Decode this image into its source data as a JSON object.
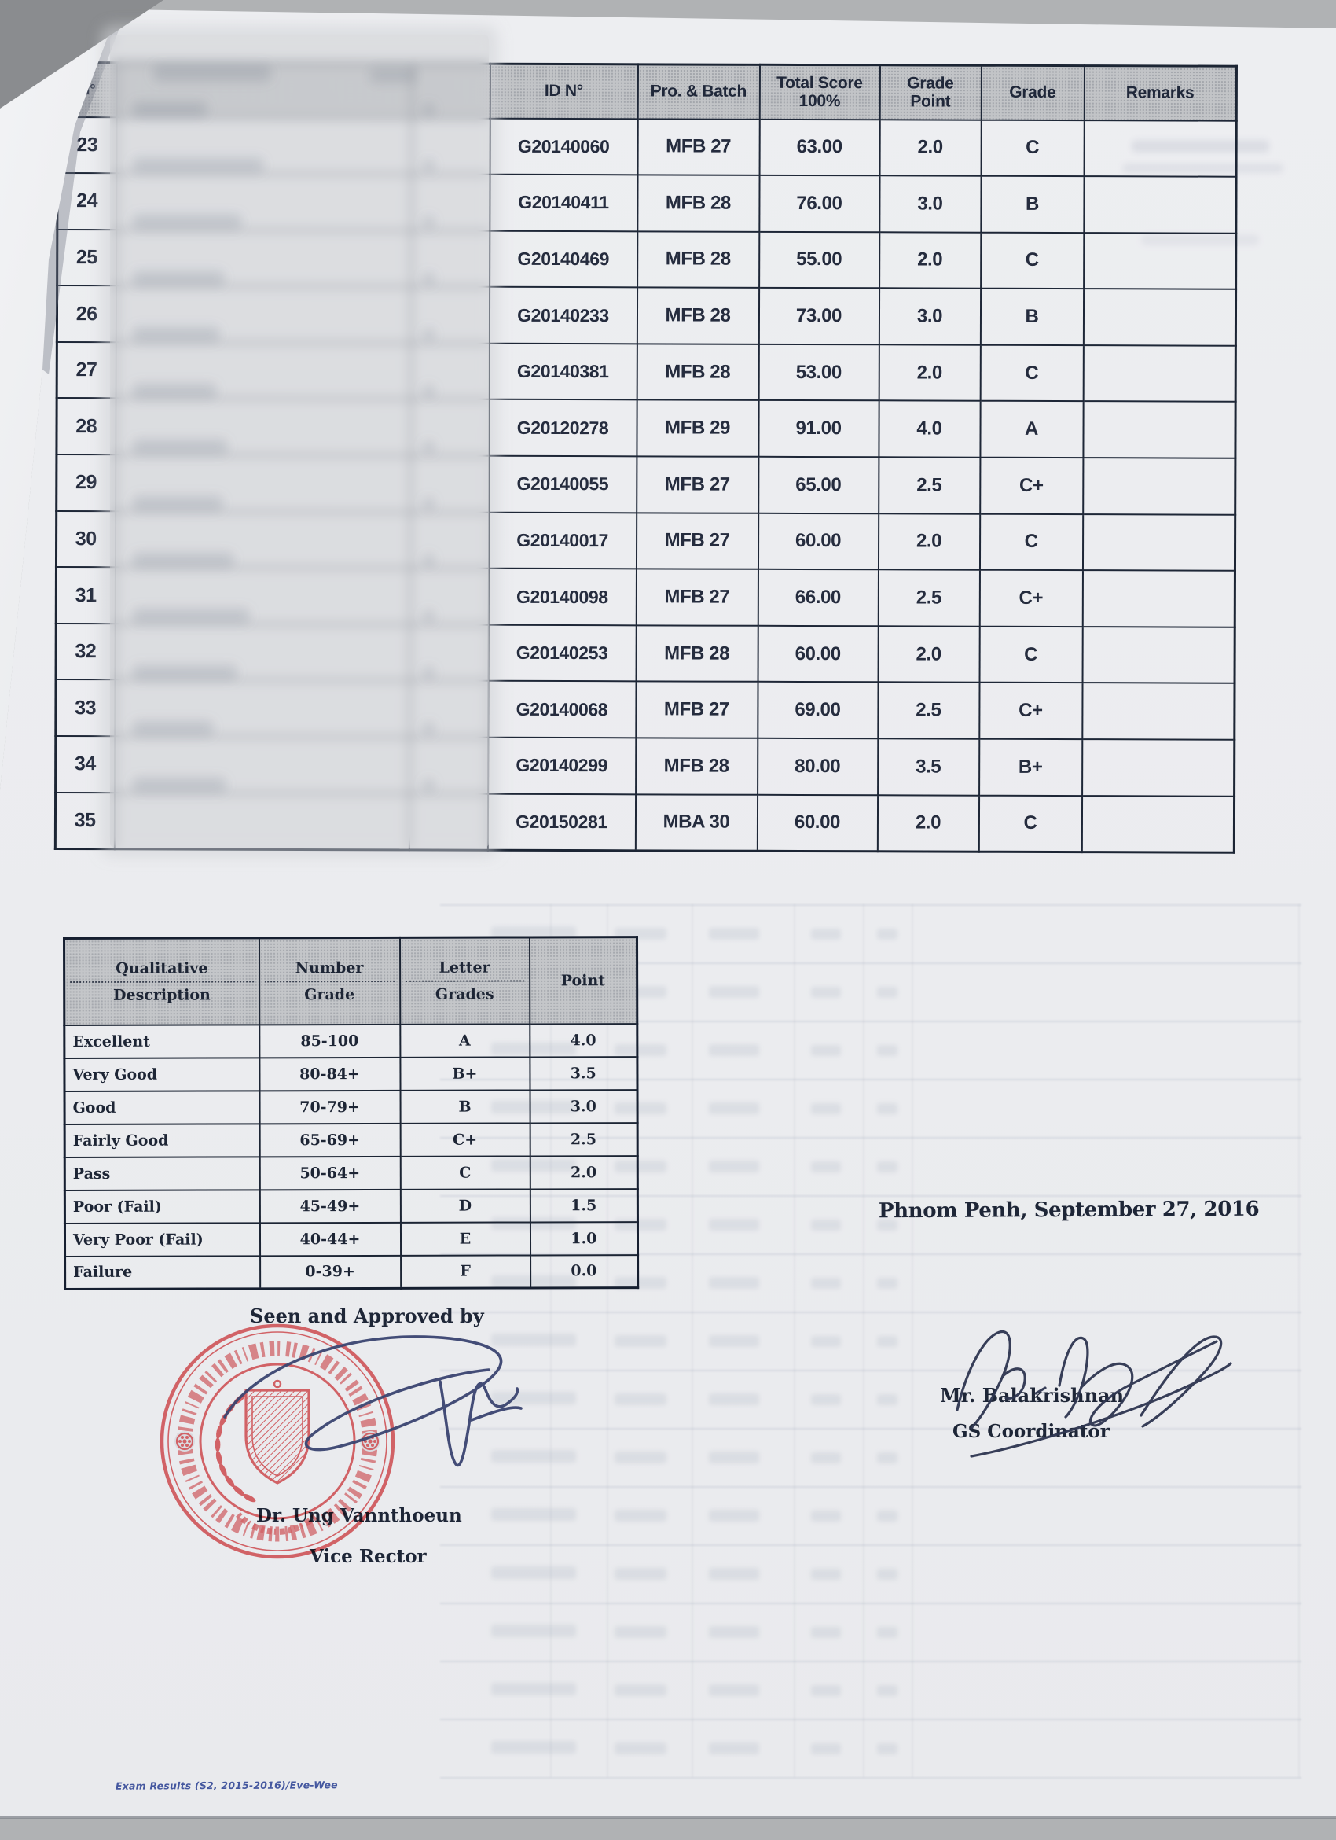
{
  "results_table": {
    "headers": {
      "no": "N°",
      "id": "ID N°",
      "pro_batch": "Pro. & Batch",
      "total_score_line1": "Total Score",
      "total_score_line2": "100%",
      "grade_point_line1": "Grade",
      "grade_point_line2": "Point",
      "grade": "Grade",
      "remarks": "Remarks"
    },
    "rows": [
      {
        "no": "23",
        "id": "G20140060",
        "batch": "MFB 27",
        "score": "63.00",
        "point": "2.0",
        "grade": "C",
        "remarks": ""
      },
      {
        "no": "24",
        "id": "G20140411",
        "batch": "MFB 28",
        "score": "76.00",
        "point": "3.0",
        "grade": "B",
        "remarks": ""
      },
      {
        "no": "25",
        "id": "G20140469",
        "batch": "MFB 28",
        "score": "55.00",
        "point": "2.0",
        "grade": "C",
        "remarks": ""
      },
      {
        "no": "26",
        "id": "G20140233",
        "batch": "MFB 28",
        "score": "73.00",
        "point": "3.0",
        "grade": "B",
        "remarks": ""
      },
      {
        "no": "27",
        "id": "G20140381",
        "batch": "MFB 28",
        "score": "53.00",
        "point": "2.0",
        "grade": "C",
        "remarks": ""
      },
      {
        "no": "28",
        "id": "G20120278",
        "batch": "MFB 29",
        "score": "91.00",
        "point": "4.0",
        "grade": "A",
        "remarks": ""
      },
      {
        "no": "29",
        "id": "G20140055",
        "batch": "MFB 27",
        "score": "65.00",
        "point": "2.5",
        "grade": "C+",
        "remarks": ""
      },
      {
        "no": "30",
        "id": "G20140017",
        "batch": "MFB 27",
        "score": "60.00",
        "point": "2.0",
        "grade": "C",
        "remarks": ""
      },
      {
        "no": "31",
        "id": "G20140098",
        "batch": "MFB 27",
        "score": "66.00",
        "point": "2.5",
        "grade": "C+",
        "remarks": ""
      },
      {
        "no": "32",
        "id": "G20140253",
        "batch": "MFB 28",
        "score": "60.00",
        "point": "2.0",
        "grade": "C",
        "remarks": ""
      },
      {
        "no": "33",
        "id": "G20140068",
        "batch": "MFB 27",
        "score": "69.00",
        "point": "2.5",
        "grade": "C+",
        "remarks": ""
      },
      {
        "no": "34",
        "id": "G20140299",
        "batch": "MFB 28",
        "score": "80.00",
        "point": "3.5",
        "grade": "B+",
        "remarks": ""
      },
      {
        "no": "35",
        "id": "G20150281",
        "batch": "MBA 30",
        "score": "60.00",
        "point": "2.0",
        "grade": "C",
        "remarks": ""
      }
    ]
  },
  "grading_scale": {
    "headers": {
      "qualitative_top": "Qualitative",
      "qualitative_bottom": "Description",
      "number_top": "Number",
      "number_bottom": "Grade",
      "letter_top": "Letter",
      "letter_bottom": "Grades",
      "point": "Point"
    },
    "rows": [
      {
        "description": "Excellent",
        "range": "85-100",
        "letter": "A",
        "point": "4.0"
      },
      {
        "description": "Very Good",
        "range": "80-84+",
        "letter": "B+",
        "point": "3.5"
      },
      {
        "description": "Good",
        "range": "70-79+",
        "letter": "B",
        "point": "3.0"
      },
      {
        "description": "Fairly Good",
        "range": "65-69+",
        "letter": "C+",
        "point": "2.5"
      },
      {
        "description": "Pass",
        "range": "50-64+",
        "letter": "C",
        "point": "2.0"
      },
      {
        "description": "Poor (Fail)",
        "range": "45-49+",
        "letter": "D",
        "point": "1.5"
      },
      {
        "description": "Very Poor (Fail)",
        "range": "40-44+",
        "letter": "E",
        "point": "1.0"
      },
      {
        "description": "Failure",
        "range": "0-39+",
        "letter": "F",
        "point": "0.0"
      }
    ]
  },
  "date_line": "Phnom Penh, September 27, 2016",
  "approval": {
    "seen_approved": "Seen and Approved by",
    "approver_name": "Dr. Ung Vannthoeun",
    "approver_title": "Vice Rector"
  },
  "coordinator": {
    "name": "Mr. Balakrishnan",
    "title": "GS Coordinator"
  },
  "footer_note": "Exam Results (S2, 2015-2016)/Eve-Wee",
  "colors": {
    "stamp_red": "#df4b4f",
    "ink_navy": "#2e3550",
    "paper": "#ebecef"
  }
}
